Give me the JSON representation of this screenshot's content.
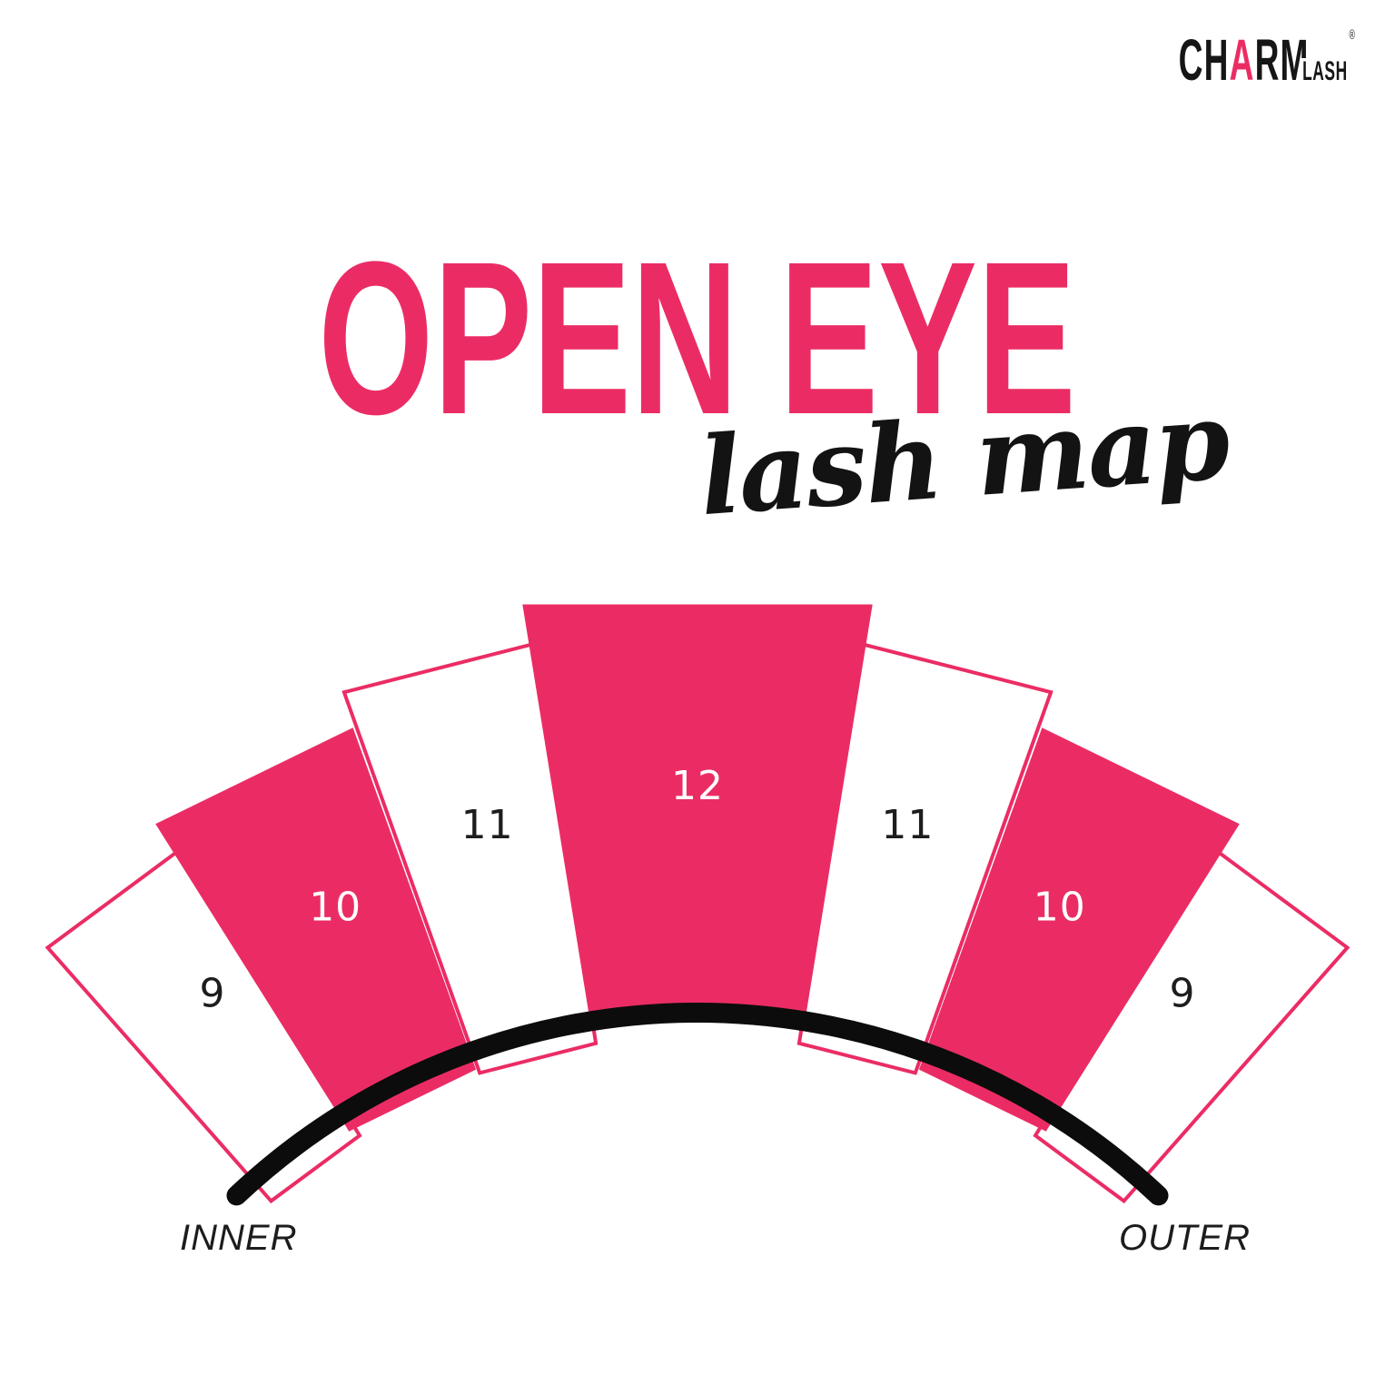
{
  "brand": {
    "part1": "CH",
    "accent": "A",
    "part2": "RM",
    "sub": "LASH",
    "registered": "®"
  },
  "title": {
    "main": "OPEN EYE",
    "script": "lash map"
  },
  "diagram": {
    "name": "open-eye-lash-map",
    "inner_label": "INNER",
    "outer_label": "OUTER",
    "segments": [
      {
        "position": "inner-1",
        "length": "9",
        "filled": false
      },
      {
        "position": "inner-2",
        "length": "10",
        "filled": true
      },
      {
        "position": "inner-3",
        "length": "11",
        "filled": false
      },
      {
        "position": "center",
        "length": "12",
        "filled": true
      },
      {
        "position": "outer-3",
        "length": "11",
        "filled": false
      },
      {
        "position": "outer-2",
        "length": "10",
        "filled": true
      },
      {
        "position": "outer-1",
        "length": "9",
        "filled": false
      }
    ]
  },
  "colors": {
    "pink": "#EB2C64",
    "ink": "#131313",
    "curve_black": "#0C0C0C",
    "label_dark": "#1D1D1D",
    "label_light": "#FFFFFF",
    "background": "#FFFFFF"
  }
}
